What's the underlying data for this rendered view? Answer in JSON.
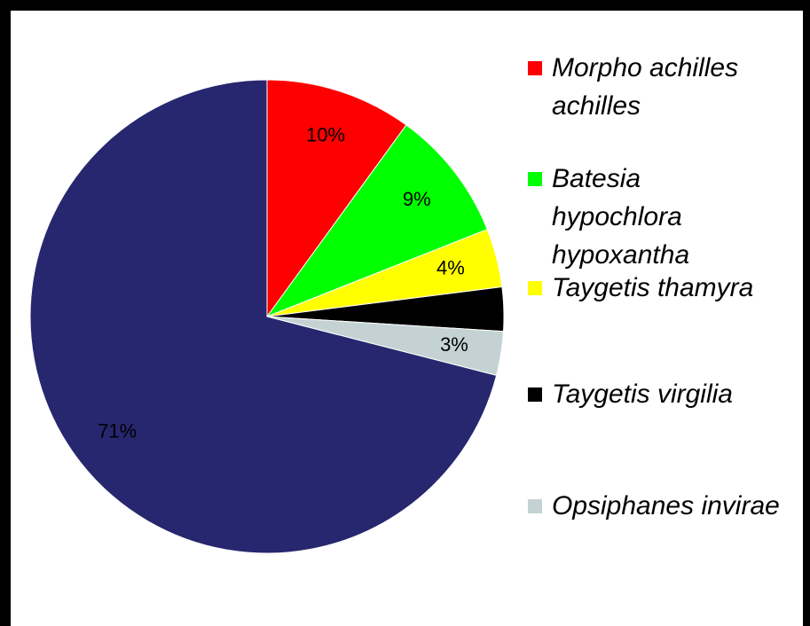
{
  "chart_data": {
    "type": "pie",
    "categories": [
      "Morpho achilles achilles",
      "Batesia hypochlora hypoxantha",
      "Taygetis thamyra",
      "Taygetis virgilia",
      "Opsiphanes invirae",
      null
    ],
    "values": [
      10,
      9,
      4,
      3,
      3,
      71
    ],
    "value_labels": [
      "10%",
      "9%",
      "4%",
      "3%",
      "3%",
      "71%"
    ],
    "colors": [
      "#ff0000",
      "#00ff00",
      "#ffff00",
      "#000000",
      "#c4d2d4",
      "#27276f"
    ],
    "legend": "right"
  }
}
